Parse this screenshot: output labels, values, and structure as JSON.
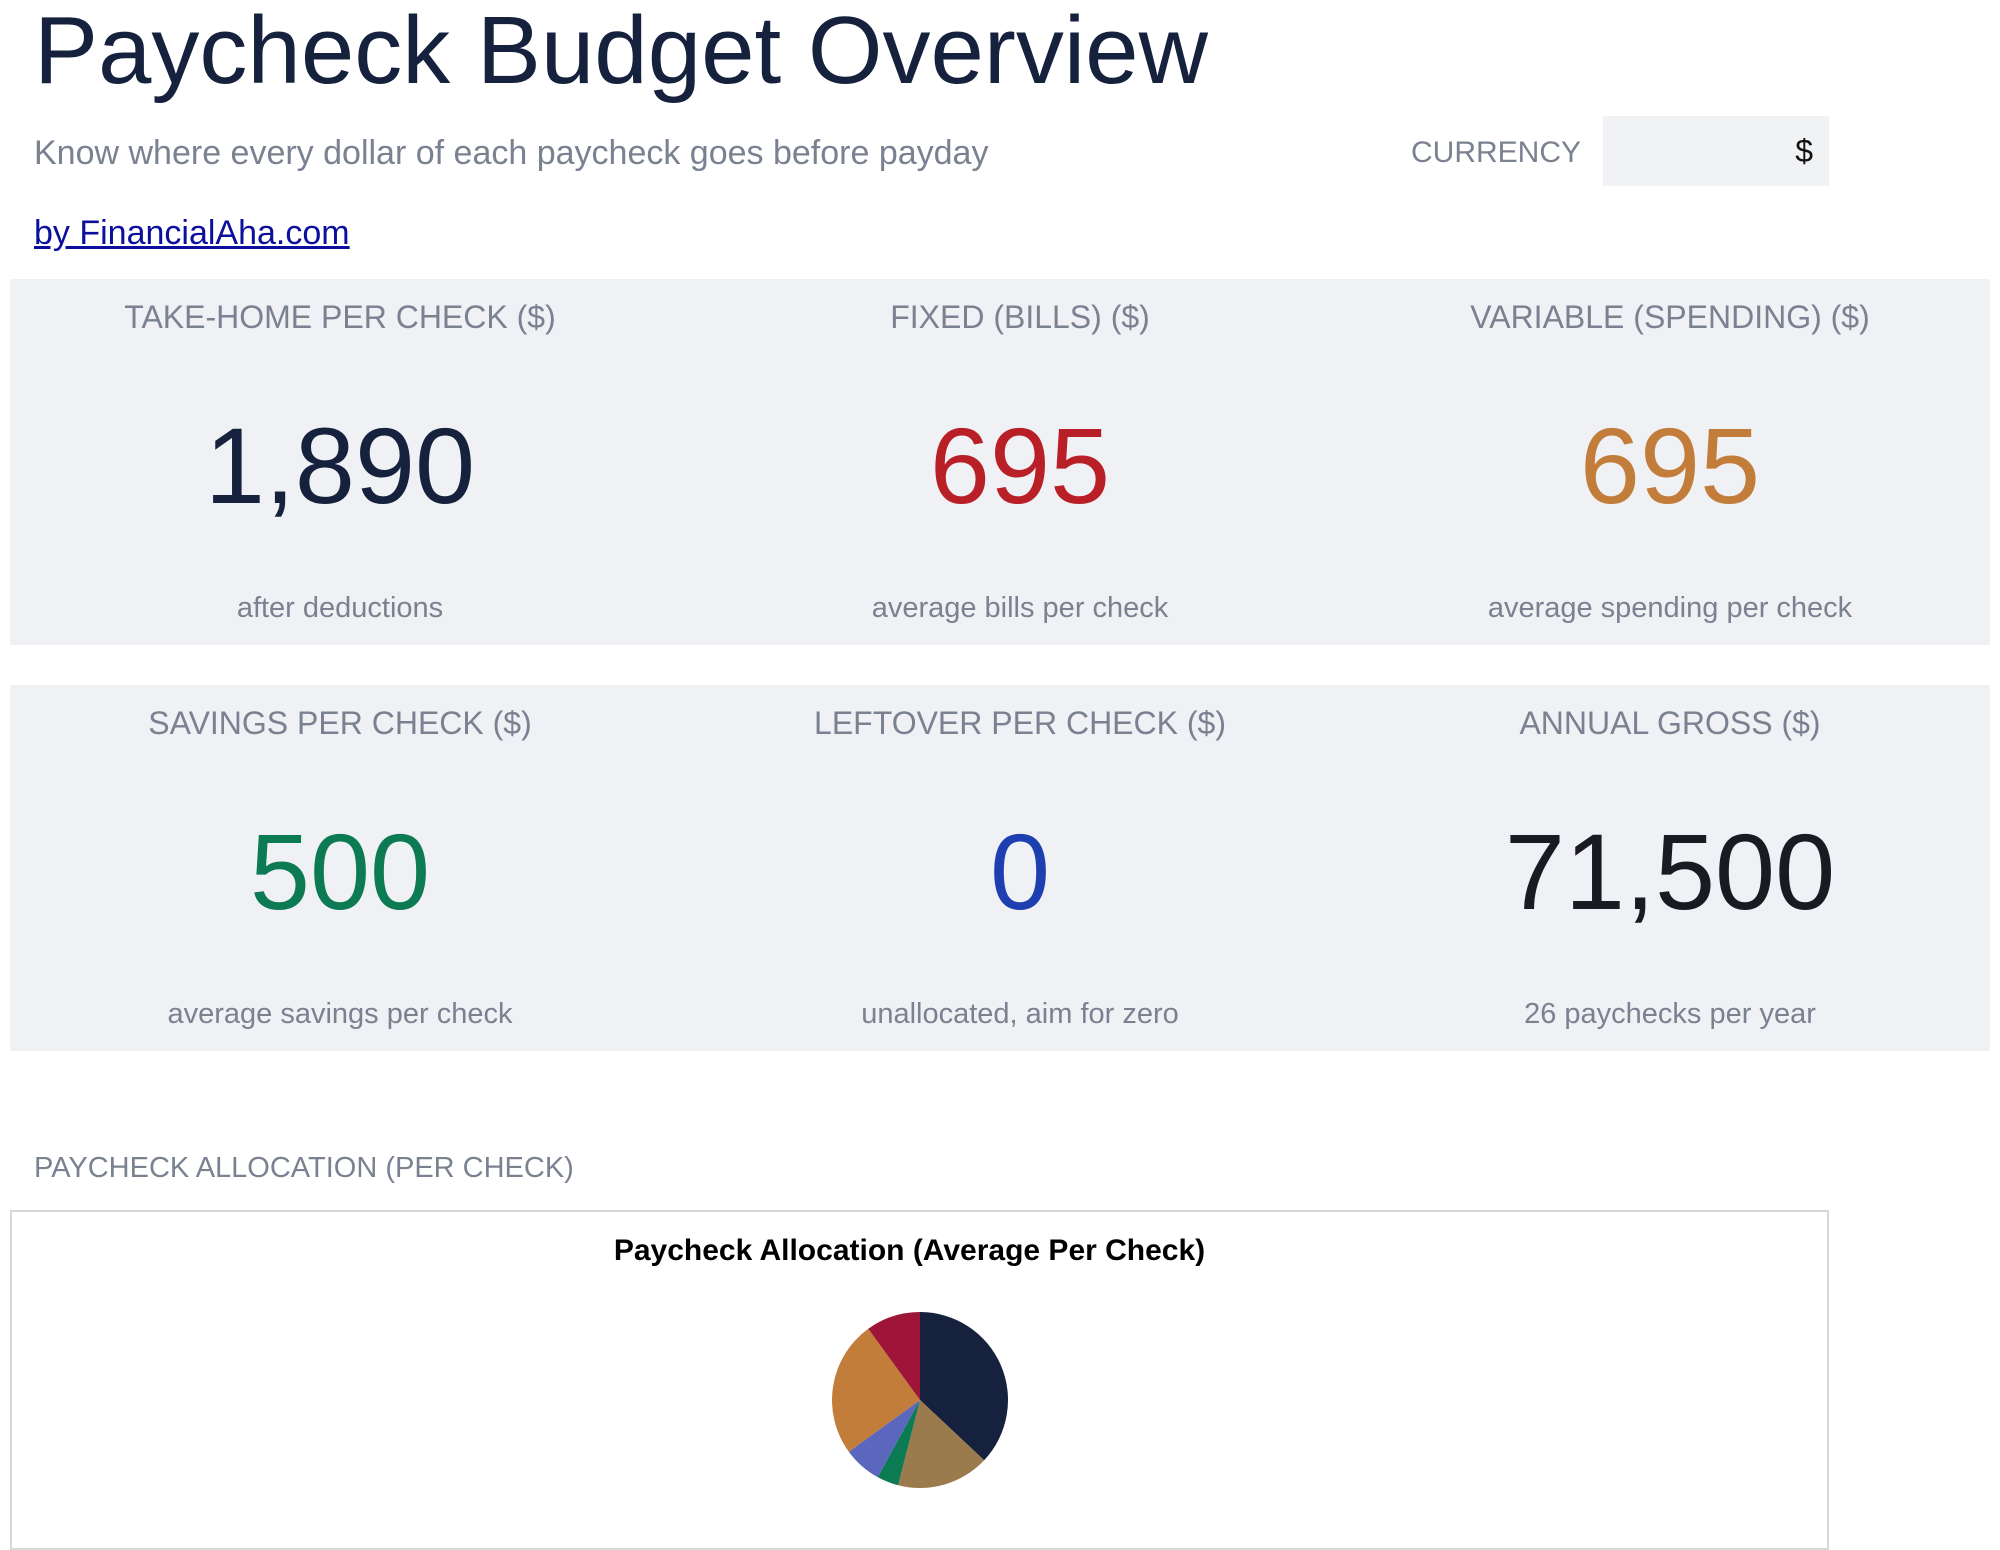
{
  "header": {
    "title": "Paycheck Budget Overview",
    "subtitle": "Know where every dollar of each paycheck goes before payday",
    "byline": "by FinancialAha.com"
  },
  "currency": {
    "label": "CURRENCY",
    "value": "$"
  },
  "cards": [
    {
      "label": "TAKE-HOME PER CHECK ($)",
      "value": "1,890",
      "note": "after deductions",
      "color": "#15213d"
    },
    {
      "label": "FIXED (BILLS) ($)",
      "value": "695",
      "note": "average bills per check",
      "color": "#b81f26"
    },
    {
      "label": "VARIABLE (SPENDING) ($)",
      "value": "695",
      "note": "average spending per check",
      "color": "#c27d3a"
    },
    {
      "label": "SAVINGS PER CHECK ($)",
      "value": "500",
      "note": "average savings per check",
      "color": "#0c7a52"
    },
    {
      "label": "LEFTOVER PER CHECK ($)",
      "value": "0",
      "note": "unallocated, aim for zero",
      "color": "#1e3fb0"
    },
    {
      "label": "ANNUAL GROSS ($)",
      "value": "71,500",
      "note": "26 paychecks per year",
      "color": "#1a1a22"
    }
  ],
  "section_label": "PAYCHECK ALLOCATION (PER CHECK)",
  "chart_data": {
    "type": "pie",
    "title": "Paycheck Allocation (Average Per Check)",
    "values": [
      37,
      17,
      4,
      7,
      25,
      10
    ],
    "colors": [
      "#15213d",
      "#9b7a4d",
      "#0c7a52",
      "#5b67bd",
      "#c27d3a",
      "#9e1537"
    ]
  }
}
